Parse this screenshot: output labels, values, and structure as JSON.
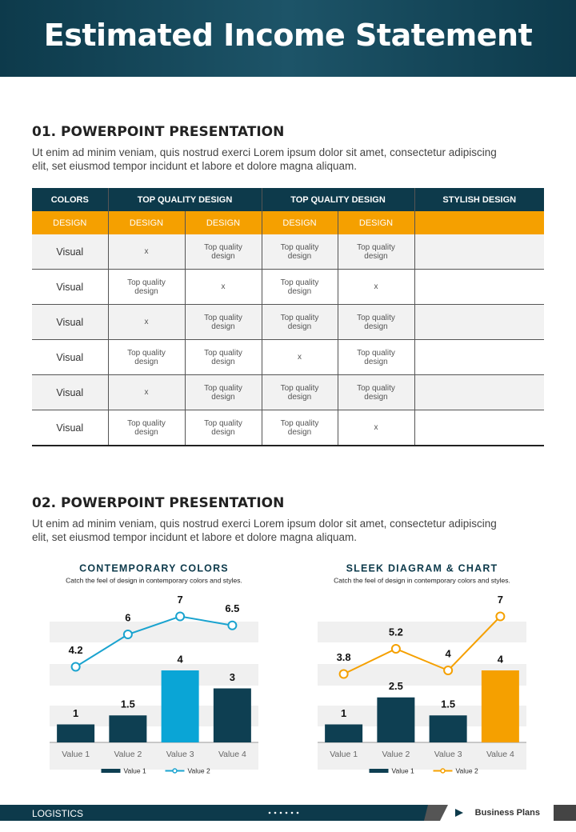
{
  "header": {
    "title": "Estimated Income Statement"
  },
  "sections": [
    {
      "heading": "01.  POWERPOINT PRESENTATION",
      "text": "Ut enim ad minim veniam, quis nostrud exerci  Lorem ipsum dolor sit amet, consectetur adipiscing elit, set eiusmod tempor incidunt  et labore et dolore magna aliquam."
    },
    {
      "heading": "02.  POWERPOINT PRESENTATION",
      "text": "Ut enim ad minim veniam, quis nostrud exerci  Lorem ipsum dolor sit amet, consectetur adipiscing elit, set eiusmod tempor  incidunt et labore et dolore magna aliquam."
    }
  ],
  "table": {
    "header": [
      "COLORS",
      "TOP QUALITY DESIGN",
      "TOP QUALITY DESIGN",
      "STYLISH DESIGN"
    ],
    "subheader": [
      "DESIGN",
      "DESIGN",
      "DESIGN",
      "DESIGN",
      "DESIGN"
    ],
    "rows": [
      [
        "Visual",
        "x",
        "Top quality design",
        "Top quality design",
        "Top quality design"
      ],
      [
        "Visual",
        "Top quality design",
        "x",
        "Top quality design",
        "x"
      ],
      [
        "Visual",
        "x",
        "Top quality design",
        "Top quality design",
        "Top quality design"
      ],
      [
        "Visual",
        "Top quality design",
        "Top quality design",
        "x",
        "Top quality design"
      ],
      [
        "Visual",
        "x",
        "Top quality design",
        "Top quality design",
        "Top quality design"
      ],
      [
        "Visual",
        "Top quality design",
        "Top quality design",
        "Top quality design",
        "x"
      ]
    ]
  },
  "chart_data": [
    {
      "type": "combo",
      "title": "CONTEMPORARY COLORS",
      "subtitle": "Catch the feel of design in contemporary colors and styles.",
      "categories": [
        "Value 1",
        "Value 2",
        "Value 3",
        "Value 4"
      ],
      "ylim": [
        0,
        8
      ],
      "series": [
        {
          "name": "Value 1",
          "type": "bar",
          "color": "#0e3f52",
          "colors": [
            "#0e3f52",
            "#0e3f52",
            "#0aa5d6",
            "#0e3f52"
          ],
          "values": [
            1,
            1.5,
            4,
            3
          ]
        },
        {
          "name": "Value 2",
          "type": "line",
          "color": "#1aa3cf",
          "values": [
            4.2,
            6,
            7,
            6.5
          ]
        }
      ]
    },
    {
      "type": "combo",
      "title": "SLEEK DIAGRAM & CHART",
      "subtitle": "Catch the feel of design in contemporary colors and styles.",
      "categories": [
        "Value 1",
        "Value 2",
        "Value 3",
        "Value 4"
      ],
      "ylim": [
        0,
        8
      ],
      "series": [
        {
          "name": "Value 1",
          "type": "bar",
          "color": "#0e3f52",
          "colors": [
            "#0e3f52",
            "#0e3f52",
            "#0e3f52",
            "#f5a000"
          ],
          "values": [
            1,
            2.5,
            1.5,
            4
          ]
        },
        {
          "name": "Value 2",
          "type": "line",
          "color": "#f5a000",
          "values": [
            3.8,
            5.2,
            4,
            7
          ]
        }
      ]
    }
  ],
  "footer": {
    "left": "LOGISTICS",
    "right": "Business Plans"
  }
}
